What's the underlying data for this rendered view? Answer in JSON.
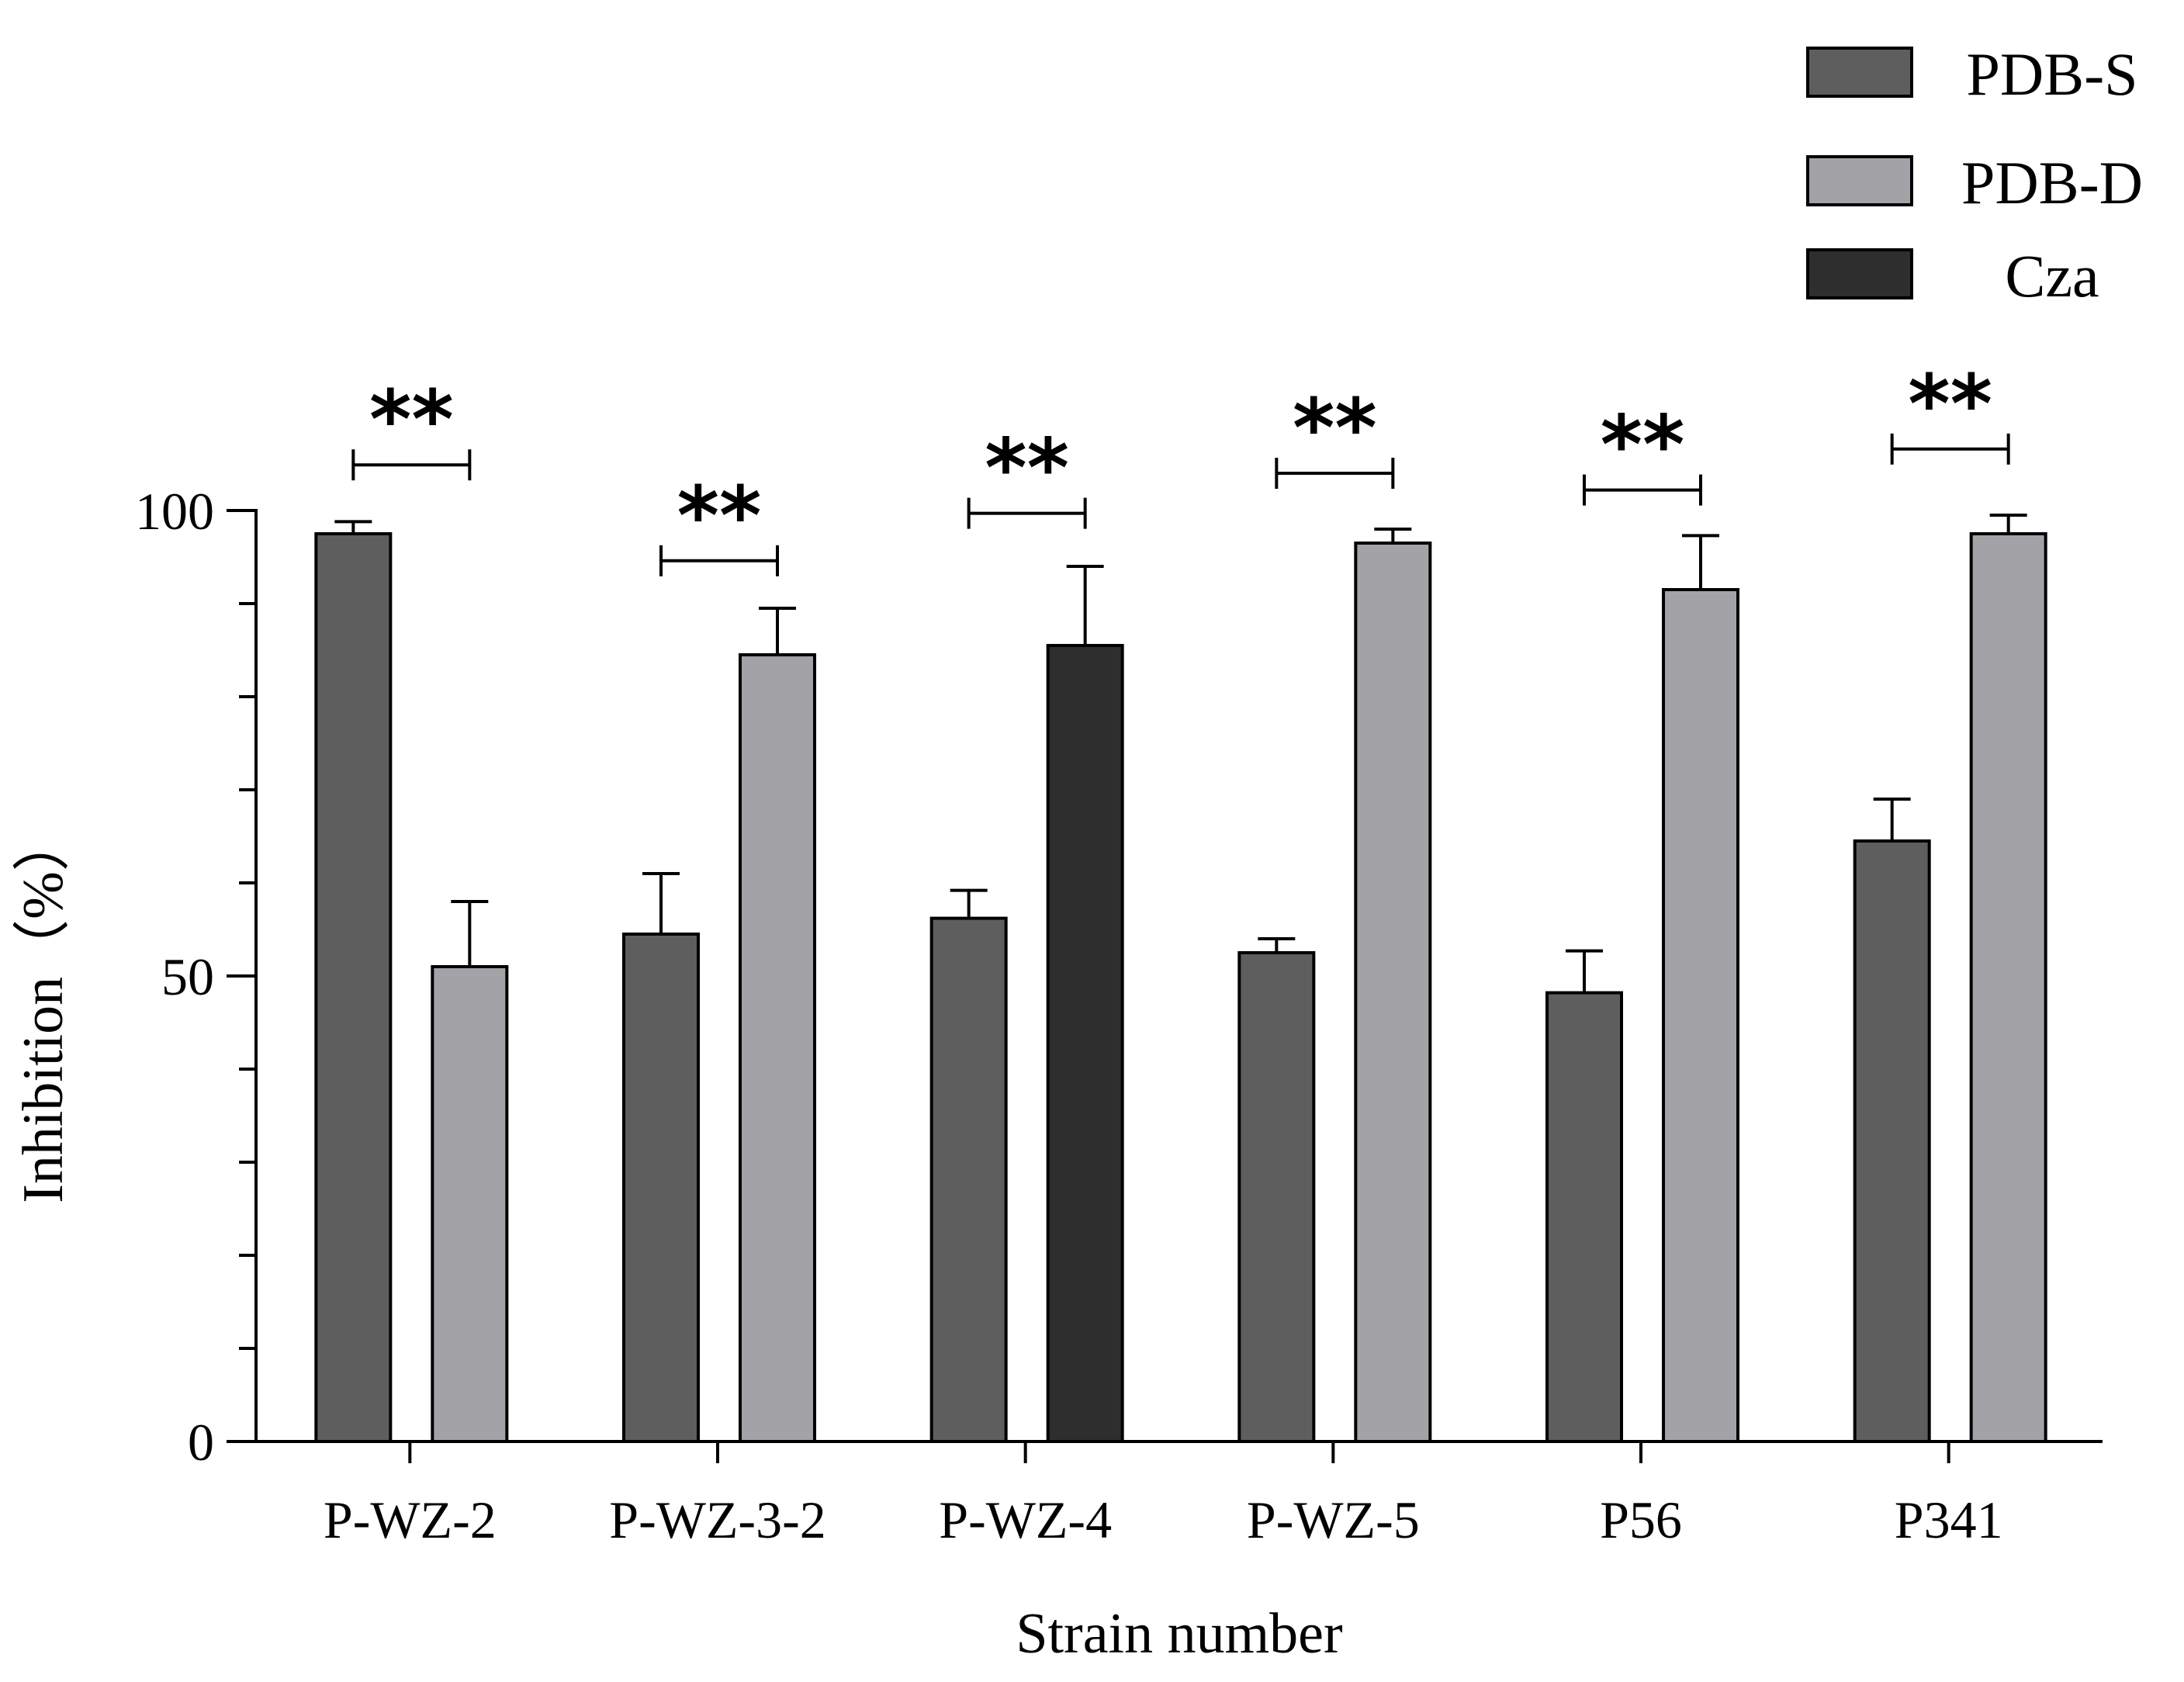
{
  "chart_data": {
    "type": "bar",
    "title": "",
    "xlabel": "Strain number",
    "ylabel": "Inhibition（%）",
    "ylim": [
      0,
      100
    ],
    "yticks": [
      0,
      50,
      100
    ],
    "yticks_labeled": [
      "0",
      "50",
      "100"
    ],
    "minor_ticks": [
      10,
      20,
      30,
      40,
      60,
      70,
      80,
      90
    ],
    "categories": [
      "P-WZ-2",
      "P-WZ-3-2",
      "P-WZ-4",
      "P-WZ-5",
      "P56",
      "P341"
    ],
    "series": [
      {
        "name": "PDB-S",
        "color": "#5e5e5e",
        "values": [
          97.5,
          54.5,
          56.2,
          52.5,
          48.2,
          64.5
        ],
        "errors": [
          1.3,
          6.5,
          3.0,
          1.5,
          4.5,
          4.5
        ]
      },
      {
        "name": "PDB-D",
        "color": "#a3a2a6",
        "values": [
          51.0,
          84.5,
          null,
          96.5,
          91.5,
          97.5
        ],
        "errors": [
          7.0,
          5.0,
          null,
          1.5,
          5.8,
          2.0
        ]
      },
      {
        "name": "Cza",
        "color": "#2e2e2e",
        "values": [
          null,
          null,
          85.5,
          null,
          null,
          null
        ],
        "errors": [
          null,
          null,
          8.5,
          null,
          null,
          null
        ]
      }
    ],
    "bar_pairs": [
      [
        "PDB-S",
        "PDB-D"
      ],
      [
        "PDB-S",
        "PDB-D"
      ],
      [
        "PDB-S",
        "Cza"
      ],
      [
        "PDB-S",
        "PDB-D"
      ],
      [
        "PDB-S",
        "PDB-D"
      ],
      [
        "PDB-S",
        "PDB-D"
      ]
    ],
    "significance": [
      {
        "label": "**",
        "bracket_value": 104.9
      },
      {
        "label": "**",
        "bracket_value": 94.6
      },
      {
        "label": "**",
        "bracket_value": 99.7
      },
      {
        "label": "**",
        "bracket_value": 104.0
      },
      {
        "label": "**",
        "bracket_value": 102.2
      },
      {
        "label": "**",
        "bracket_value": 106.6
      }
    ],
    "legend": {
      "position": "top-right",
      "entries": [
        "PDB-S",
        "PDB-D",
        "Cza"
      ]
    }
  }
}
